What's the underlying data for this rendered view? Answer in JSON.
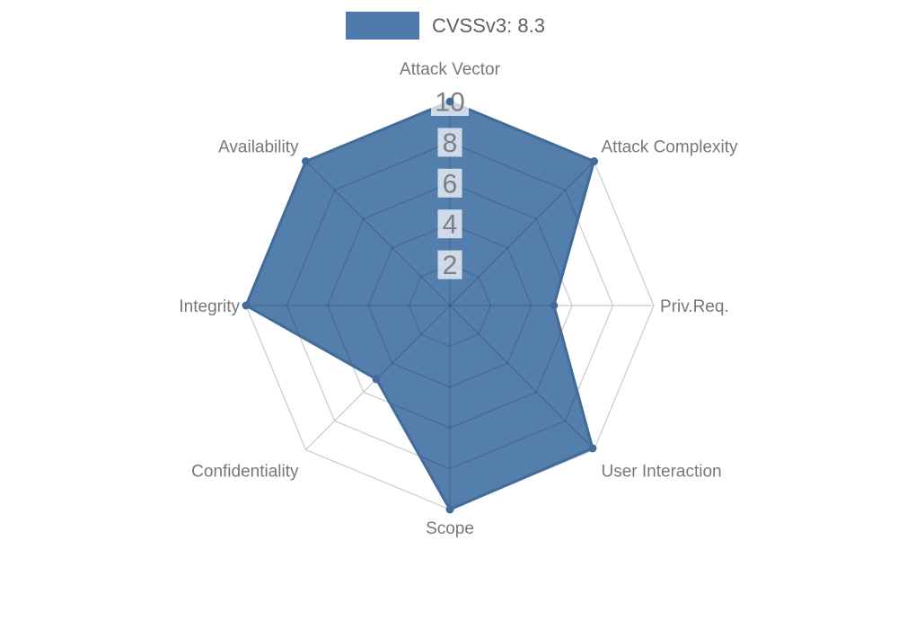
{
  "legend": {
    "label": "CVSSv3: 8.3"
  },
  "chart_data": {
    "type": "radar",
    "title": "",
    "categories": [
      "Attack Vector",
      "Attack Complexity",
      "Priv.Req.",
      "User Interaction",
      "Scope",
      "Confidentiality",
      "Integrity",
      "Availability"
    ],
    "series": [
      {
        "name": "CVSSv3: 8.3",
        "values": [
          10,
          10,
          5.1,
          9.9,
          10,
          5.1,
          10,
          10
        ]
      }
    ],
    "scale": {
      "min": 0,
      "max": 10,
      "tick_step": 2,
      "tick_labels": [
        "2",
        "4",
        "6",
        "8",
        "10"
      ]
    },
    "legend_position": "top-center",
    "grid": "polygon-web",
    "rings": [
      2,
      4,
      6,
      8,
      10
    ],
    "colors": {
      "series_fill": "#4d7aaa",
      "series_border": "#426b99",
      "point": "#426b99",
      "grid": "#c7cacf",
      "grid_over_fill": "rgba(28,48,78,0.26)",
      "tick_text": "#7b7f84",
      "tick_backdrop": "rgba(255,255,255,0.72)",
      "axis_label": "#74787c",
      "legend_text": "#5e6266",
      "background": "#ffffff"
    }
  }
}
